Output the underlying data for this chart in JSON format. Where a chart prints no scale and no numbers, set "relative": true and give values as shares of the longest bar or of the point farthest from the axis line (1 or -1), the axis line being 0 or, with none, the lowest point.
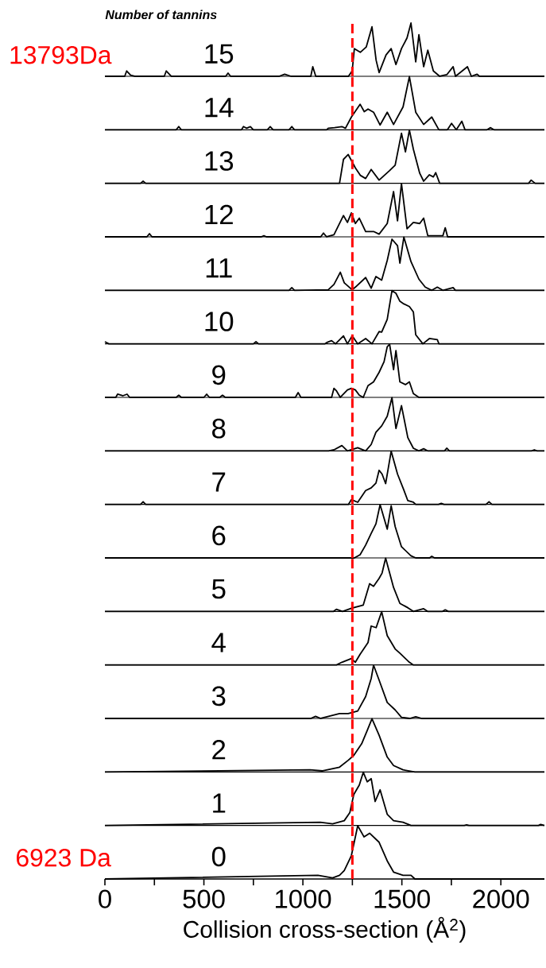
{
  "chart_data": [
    {
      "type": "line",
      "relative": true,
      "title": "Number of tannins",
      "annotations": [
        "13793Da"
      ],
      "xlim": [
        0,
        2220
      ],
      "tick_labels": false,
      "ref_lines": [
        {
          "axis": "x",
          "value": 1250,
          "color": "#ff0000",
          "line_style": "dashed"
        }
      ],
      "series": [
        {
          "name": "15",
          "color": "#000000",
          "x": [
            0,
            100,
            110,
            130,
            150,
            300,
            310,
            335,
            610,
            622,
            635,
            880,
            908,
            940,
            1040,
            1050,
            1065,
            1230,
            1249,
            1260,
            1290,
            1320,
            1349,
            1370,
            1385,
            1420,
            1446,
            1470,
            1498,
            1526,
            1546,
            1570,
            1586,
            1610,
            1631,
            1659,
            1691,
            1727,
            1759,
            1771,
            1831,
            1851,
            1880,
            1892,
            2220
          ],
          "values": [
            0,
            0,
            0.1,
            0.02,
            0,
            0,
            0.1,
            0,
            0,
            0.06,
            0,
            0,
            0.04,
            0,
            0,
            0.18,
            0,
            0,
            0.1,
            0.52,
            0.45,
            0.55,
            0.93,
            0.3,
            0.07,
            0.4,
            0.52,
            0.22,
            0.52,
            0.72,
            1.0,
            0.27,
            0.78,
            0.18,
            0.49,
            0.1,
            0,
            0.03,
            0.18,
            0,
            0.18,
            0,
            0.04,
            0,
            0
          ]
        }
      ]
    },
    {
      "type": "line",
      "relative": true,
      "xlim": [
        0,
        2220
      ],
      "tick_labels": false,
      "ref_lines": [
        {
          "axis": "x",
          "value": 1250,
          "color": "#ff0000",
          "line_style": "dashed"
        }
      ],
      "series": [
        {
          "name": "14",
          "color": "#000000",
          "x": [
            0,
            360,
            373,
            386,
            690,
            700,
            715,
            735,
            750,
            820,
            835,
            850,
            930,
            944,
            958,
            1120,
            1128,
            1160,
            1197,
            1215,
            1245,
            1289,
            1310,
            1329,
            1357,
            1390,
            1426,
            1458,
            1506,
            1538,
            1570,
            1610,
            1651,
            1687,
            1730,
            1751,
            1775,
            1803,
            1819,
            1930,
            1948,
            1965,
            2220
          ],
          "values": [
            0,
            0,
            0.06,
            0,
            0,
            0.06,
            0.03,
            0.06,
            0,
            0,
            0.06,
            0,
            0,
            0.06,
            0,
            0,
            0.03,
            0.04,
            0.06,
            0.03,
            0.24,
            0.48,
            0.34,
            0.39,
            0.33,
            0.09,
            0.33,
            0.1,
            0.43,
            1.0,
            0.33,
            0.1,
            0.24,
            0,
            0,
            0.12,
            0,
            0.16,
            0,
            0,
            0.04,
            0,
            0
          ]
        }
      ]
    },
    {
      "type": "line",
      "relative": true,
      "xlim": [
        0,
        2220
      ],
      "tick_labels": false,
      "ref_lines": [
        {
          "axis": "x",
          "value": 1250,
          "color": "#ff0000",
          "line_style": "dashed"
        }
      ],
      "series": [
        {
          "name": "13",
          "color": "#000000",
          "x": [
            0,
            180,
            193,
            206,
            1185,
            1205,
            1229,
            1265,
            1290,
            1317,
            1345,
            1385,
            1438,
            1466,
            1498,
            1518,
            1538,
            1558,
            1590,
            1610,
            1639,
            1659,
            1671,
            1691,
            2140,
            2153,
            2173,
            2220
          ],
          "values": [
            0,
            0,
            0.04,
            0,
            0,
            0.45,
            0.54,
            0.29,
            0.15,
            0.09,
            0.26,
            0.06,
            0.24,
            0.34,
            0.94,
            0.59,
            1.0,
            0.64,
            0.19,
            0.04,
            0.16,
            0.12,
            0.2,
            0,
            0,
            0.06,
            0,
            0
          ]
        }
      ]
    },
    {
      "type": "line",
      "relative": true,
      "xlim": [
        0,
        2220
      ],
      "tick_labels": false,
      "ref_lines": [
        {
          "axis": "x",
          "value": 1250,
          "color": "#ff0000",
          "line_style": "dashed"
        }
      ],
      "series": [
        {
          "name": "12",
          "color": "#000000",
          "x": [
            0,
            212,
            225,
            238,
            790,
            803,
            816,
            1090,
            1104,
            1120,
            1157,
            1205,
            1225,
            1245,
            1265,
            1285,
            1317,
            1357,
            1385,
            1426,
            1458,
            1478,
            1498,
            1526,
            1558,
            1590,
            1610,
            1631,
            1707,
            1719,
            1731,
            2220
          ],
          "values": [
            0,
            0,
            0.06,
            0,
            0,
            0.02,
            0,
            0,
            0.07,
            0,
            0.04,
            0.4,
            0.27,
            0.45,
            0.25,
            0.35,
            0.1,
            0.1,
            0.05,
            0.25,
            0.85,
            0.3,
            1.0,
            0.15,
            0.27,
            0.25,
            0.35,
            0.02,
            0.02,
            0.17,
            0,
            0
          ]
        }
      ]
    },
    {
      "type": "line",
      "relative": true,
      "xlim": [
        0,
        2220
      ],
      "tick_labels": false,
      "ref_lines": [
        {
          "axis": "x",
          "value": 1250,
          "color": "#ff0000",
          "line_style": "dashed"
        }
      ],
      "series": [
        {
          "name": "11",
          "color": "#000000",
          "x": [
            0,
            930,
            944,
            958,
            1128,
            1157,
            1189,
            1209,
            1249,
            1265,
            1317,
            1345,
            1369,
            1398,
            1426,
            1450,
            1478,
            1490,
            1510,
            1546,
            1586,
            1618,
            1651,
            1679,
            1707,
            1759,
            1771,
            2220
          ],
          "values": [
            0,
            0,
            0.05,
            0,
            0.01,
            0.11,
            0.34,
            0.14,
            0.01,
            0.06,
            0.24,
            0.04,
            0.26,
            0.19,
            0.56,
            0.96,
            0.84,
            0.51,
            1.0,
            0.54,
            0.21,
            0.06,
            0,
            0.06,
            0,
            0.05,
            0,
            0
          ]
        }
      ]
    },
    {
      "type": "line",
      "relative": true,
      "xlim": [
        0,
        2220
      ],
      "tick_labels": false,
      "ref_lines": [
        {
          "axis": "x",
          "value": 1250,
          "color": "#ff0000",
          "line_style": "dashed"
        }
      ],
      "series": [
        {
          "name": "10",
          "color": "#000000",
          "x": [
            0,
            10,
            20,
            750,
            763,
            776,
            1110,
            1124,
            1145,
            1165,
            1205,
            1225,
            1249,
            1277,
            1317,
            1349,
            1385,
            1398,
            1426,
            1450,
            1470,
            1490,
            1510,
            1538,
            1558,
            1570,
            1606,
            1639,
            1679,
            1687,
            2220
          ],
          "values": [
            0.04,
            0.02,
            0,
            0,
            0.04,
            0,
            0,
            0.03,
            0.06,
            0,
            0.15,
            0,
            0.15,
            0,
            0.1,
            0,
            0.23,
            0.22,
            0.46,
            1.0,
            0.95,
            0.8,
            0.75,
            0.7,
            0.6,
            0.17,
            0,
            0.1,
            0.08,
            0,
            0
          ]
        }
      ]
    },
    {
      "type": "line",
      "relative": true,
      "xlim": [
        0,
        2220
      ],
      "tick_labels": false,
      "ref_lines": [
        {
          "axis": "x",
          "value": 1250,
          "color": "#ff0000",
          "line_style": "dashed"
        }
      ],
      "series": [
        {
          "name": "9",
          "color": "#000000",
          "x": [
            0,
            55,
            64,
            90,
            112,
            125,
            360,
            373,
            386,
            500,
            514,
            528,
            580,
            594,
            608,
            962,
            976,
            990,
            1145,
            1157,
            1170,
            1189,
            1225,
            1245,
            1265,
            1285,
            1305,
            1329,
            1357,
            1385,
            1410,
            1426,
            1438,
            1458,
            1470,
            1490,
            1518,
            1538,
            1558,
            1586,
            2220
          ],
          "values": [
            0,
            0,
            0.06,
            0.03,
            0.06,
            0,
            0,
            0.04,
            0,
            0,
            0.06,
            0,
            0,
            0.04,
            0,
            0,
            0.09,
            0,
            0,
            0.17,
            0.12,
            0,
            0.14,
            0.17,
            0.14,
            0.04,
            0,
            0.22,
            0.29,
            0.47,
            0.67,
            0.95,
            1.0,
            0.52,
            0.88,
            0.29,
            0.24,
            0.29,
            0.07,
            0,
            0
          ]
        }
      ]
    },
    {
      "type": "line",
      "relative": true,
      "xlim": [
        0,
        2220
      ],
      "tick_labels": false,
      "ref_lines": [
        {
          "axis": "x",
          "value": 1250,
          "color": "#ff0000",
          "line_style": "dashed"
        }
      ],
      "series": [
        {
          "name": "8",
          "color": "#000000",
          "x": [
            0,
            1130,
            1157,
            1197,
            1225,
            1277,
            1317,
            1345,
            1369,
            1398,
            1426,
            1450,
            1470,
            1498,
            1530,
            1558,
            1586,
            1610,
            1630,
            1715,
            1727,
            1740,
            2155,
            2169,
            2183,
            2220
          ],
          "values": [
            0,
            0,
            0.02,
            0.1,
            0,
            0.06,
            0,
            0.12,
            0.35,
            0.47,
            0.65,
            1.0,
            0.42,
            0.85,
            0.25,
            0.05,
            0,
            0.04,
            0,
            0,
            0.05,
            0,
            0,
            0.02,
            0,
            0
          ]
        }
      ]
    },
    {
      "type": "line",
      "relative": true,
      "xlim": [
        0,
        2220
      ],
      "tick_labels": false,
      "ref_lines": [
        {
          "axis": "x",
          "value": 1250,
          "color": "#ff0000",
          "line_style": "dashed"
        }
      ],
      "series": [
        {
          "name": "7",
          "color": "#000000",
          "x": [
            0,
            180,
            193,
            206,
            1230,
            1245,
            1277,
            1317,
            1345,
            1369,
            1385,
            1400,
            1418,
            1446,
            1478,
            1510,
            1530,
            1558,
            1570,
            1685,
            1699,
            1713,
            1925,
            1940,
            1955,
            2220
          ],
          "values": [
            0,
            0,
            0.05,
            0,
            0,
            0.09,
            0.04,
            0.26,
            0.31,
            0.4,
            0.64,
            0.57,
            0.39,
            1.0,
            0.57,
            0.27,
            0.07,
            0.04,
            0,
            0,
            0.02,
            0,
            0,
            0.05,
            0,
            0
          ]
        }
      ]
    },
    {
      "type": "line",
      "relative": true,
      "xlim": [
        0,
        2220
      ],
      "tick_labels": false,
      "ref_lines": [
        {
          "axis": "x",
          "value": 1250,
          "color": "#ff0000",
          "line_style": "dashed"
        }
      ],
      "series": [
        {
          "name": "6",
          "color": "#000000",
          "x": [
            0,
            1260,
            1289,
            1317,
            1345,
            1369,
            1390,
            1426,
            1446,
            1466,
            1498,
            1546,
            1570,
            1640,
            1651,
            1665,
            2220
          ],
          "values": [
            0,
            0,
            0.06,
            0.24,
            0.46,
            0.64,
            1.0,
            0.54,
            0.98,
            0.59,
            0.21,
            0.04,
            0,
            0,
            0.03,
            0,
            0
          ]
        }
      ]
    },
    {
      "type": "line",
      "relative": true,
      "xlim": [
        0,
        2220
      ],
      "tick_labels": false,
      "ref_lines": [
        {
          "axis": "x",
          "value": 1250,
          "color": "#ff0000",
          "line_style": "dashed"
        }
      ],
      "series": [
        {
          "name": "5",
          "color": "#000000",
          "x": [
            0,
            1155,
            1169,
            1200,
            1245,
            1305,
            1337,
            1357,
            1385,
            1400,
            1418,
            1458,
            1490,
            1530,
            1558,
            1610,
            1630,
            1705,
            1719,
            1735,
            2220
          ],
          "values": [
            0,
            0,
            0.04,
            0,
            0.06,
            0.12,
            0.52,
            0.47,
            0.62,
            0.72,
            1.0,
            0.45,
            0.15,
            0.07,
            0,
            0.05,
            0,
            0,
            0.03,
            0,
            0
          ]
        }
      ]
    },
    {
      "type": "line",
      "relative": true,
      "xlim": [
        0,
        2220
      ],
      "tick_labels": false,
      "ref_lines": [
        {
          "axis": "x",
          "value": 1250,
          "color": "#ff0000",
          "line_style": "dashed"
        }
      ],
      "series": [
        {
          "name": "4",
          "color": "#000000",
          "x": [
            0,
            1170,
            1197,
            1245,
            1265,
            1289,
            1329,
            1345,
            1370,
            1398,
            1426,
            1466,
            1490,
            1518,
            1538,
            1558,
            2220
          ],
          "values": [
            0,
            0,
            0.05,
            0.12,
            0.05,
            0.2,
            0.42,
            0.73,
            0.7,
            1.0,
            0.55,
            0.3,
            0.22,
            0.12,
            0.05,
            0,
            0
          ]
        }
      ]
    },
    {
      "type": "line",
      "relative": true,
      "xlim": [
        0,
        2220
      ],
      "tick_labels": false,
      "ref_lines": [
        {
          "axis": "x",
          "value": 1250,
          "color": "#ff0000",
          "line_style": "dashed"
        }
      ],
      "series": [
        {
          "name": "3",
          "color": "#000000",
          "x": [
            0,
            1040,
            1064,
            1090,
            1185,
            1229,
            1277,
            1317,
            1345,
            1357,
            1385,
            1426,
            1466,
            1498,
            1540,
            1570,
            1600,
            2220
          ],
          "values": [
            0,
            0,
            0.04,
            0,
            0.09,
            0.09,
            0.14,
            0.41,
            0.75,
            1.0,
            0.72,
            0.3,
            0.16,
            0.02,
            0,
            0.03,
            0,
            0
          ]
        }
      ]
    },
    {
      "type": "line",
      "relative": true,
      "xlim": [
        0,
        2220
      ],
      "tick_labels": false,
      "ref_lines": [
        {
          "axis": "x",
          "value": 1250,
          "color": "#ff0000",
          "line_style": "dashed"
        }
      ],
      "series": [
        {
          "name": "2",
          "color": "#000000",
          "x": [
            0,
            1036,
            1100,
            1185,
            1229,
            1257,
            1297,
            1325,
            1349,
            1385,
            1426,
            1458,
            1506,
            1566,
            2220
          ],
          "values": [
            0,
            0.04,
            0.02,
            0.09,
            0.22,
            0.31,
            0.53,
            0.78,
            1.0,
            0.69,
            0.28,
            0.12,
            0.04,
            0,
            0
          ]
        }
      ]
    },
    {
      "type": "line",
      "relative": true,
      "xlim": [
        0,
        2220
      ],
      "tick_labels": false,
      "ref_lines": [
        {
          "axis": "x",
          "value": 1250,
          "color": "#ff0000",
          "line_style": "dashed"
        }
      ],
      "series": [
        {
          "name": "1",
          "color": "#000000",
          "x": [
            0,
            1088,
            1150,
            1209,
            1237,
            1257,
            1285,
            1305,
            1325,
            1345,
            1365,
            1390,
            1426,
            1458,
            1506,
            1546,
            1815,
            1827,
            1840,
            2190,
            2201,
            2220
          ],
          "values": [
            0,
            0.06,
            0.03,
            0.09,
            0.24,
            0.58,
            0.76,
            1.0,
            0.82,
            0.88,
            0.45,
            0.67,
            0.21,
            0.09,
            0.06,
            0,
            0,
            0.01,
            0,
            0,
            0.02,
            0
          ]
        }
      ]
    },
    {
      "type": "line",
      "relative": true,
      "annotations": [
        "6923 Da"
      ],
      "xlabel": "Collision cross-section (Å$^{2}$)",
      "xlim": [
        0,
        2220
      ],
      "tick_labels": "x",
      "xticks": [
        0,
        {
          "value": 250,
          "label": null
        },
        500,
        {
          "value": 750,
          "label": null
        },
        1000,
        {
          "value": 1250,
          "label": null
        },
        1500,
        {
          "value": 1750,
          "label": null
        },
        2000
      ],
      "ref_lines": [
        {
          "axis": "x",
          "value": 1250,
          "color": "#ff0000",
          "line_style": "dashed"
        }
      ],
      "series": [
        {
          "name": "0",
          "color": "#000000",
          "x": [
            0,
            1076,
            1150,
            1185,
            1209,
            1245,
            1277,
            1309,
            1337,
            1385,
            1426,
            1458,
            1506,
            1546,
            1566,
            2220
          ],
          "values": [
            0,
            0.07,
            0.02,
            0.07,
            0.16,
            0.44,
            1.0,
            0.79,
            0.86,
            0.69,
            0.34,
            0.13,
            0.07,
            0.07,
            0,
            0
          ]
        }
      ]
    }
  ]
}
